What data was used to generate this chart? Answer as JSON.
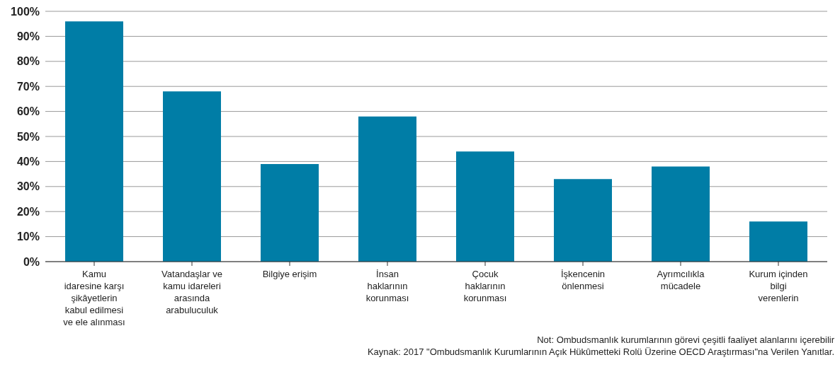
{
  "chart_data": {
    "type": "bar",
    "categories": [
      "Kamu\nidaresine karşı\nşikâyetlerin\nkabul edilmesi\nve ele alınması",
      "Vatandaşlar ve\nkamu idareleri\narasında\narabuluculuk",
      "Bilgiye erişim",
      "İnsan\nhaklarının\nkorunması",
      "Çocuk\nhaklarının\nkorunması",
      "İşkencenin\nönlenmesi",
      "Ayrımcılıkla\nmücadele",
      "Kurum içinden\nbilgi\nverenlerin"
    ],
    "values": [
      96,
      68,
      39,
      58,
      44,
      33,
      38,
      16
    ],
    "color": "#007da6",
    "ylim": [
      0,
      100
    ],
    "yticks": [
      {
        "value": 0,
        "label": "0%"
      },
      {
        "value": 10,
        "label": "10%"
      },
      {
        "value": 20,
        "label": "20%"
      },
      {
        "value": 30,
        "label": "30%"
      },
      {
        "value": 40,
        "label": "40%"
      },
      {
        "value": 50,
        "label": "50%"
      },
      {
        "value": 60,
        "label": "60%"
      },
      {
        "value": 70,
        "label": "70%"
      },
      {
        "value": 80,
        "label": "80%"
      },
      {
        "value": 90,
        "label": "90%"
      },
      {
        "value": 100,
        "label": "100%"
      }
    ],
    "grid": "y",
    "annotations": [
      "Not: Ombudsmanlık kurumlarının görevi çeşitli faaliyet alanlarını içerebilir",
      "Kaynak: 2017 \"Ombudsmanlık Kurumlarının Açık Hükûmetteki Rolü Üzerine OECD Araştırması\"na Verilen Yanıtlar."
    ]
  }
}
